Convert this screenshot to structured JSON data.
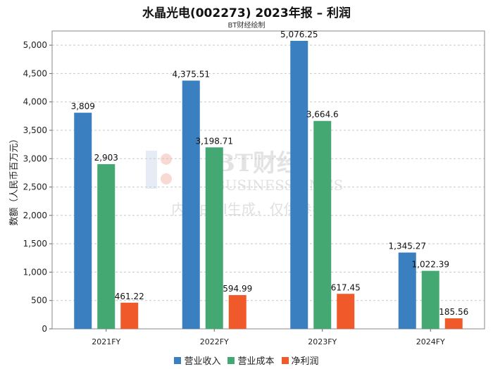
{
  "title": "水晶光电(002273) 2023年报 – 利润",
  "subtitle": "BT财经绘制",
  "watermark": {
    "brand_cn": "BT财经",
    "brand_en": "BUSINESSTIMES",
    "notice": "内容由AI生成，仅供参考"
  },
  "colors": {
    "营业收入": "#3a7fc0",
    "营业成本": "#43a872",
    "净利润": "#f05a2a"
  },
  "chart_data": {
    "type": "bar",
    "title": "水晶光电(002273) 2023年报 – 利润",
    "subtitle": "BT财经绘制",
    "xlabel": "",
    "ylabel": "数额（人民币百万元）",
    "ylim": [
      0,
      5250
    ],
    "yticks": [
      "0",
      "500",
      "1,000",
      "1,500",
      "2,000",
      "2,500",
      "3,000",
      "3,500",
      "4,000",
      "4,500",
      "5,000"
    ],
    "ytick_values": [
      0,
      500,
      1000,
      1500,
      2000,
      2500,
      3000,
      3500,
      4000,
      4500,
      5000
    ],
    "categories": [
      "2021FY",
      "2022FY",
      "2023FY",
      "2024FY"
    ],
    "series": [
      {
        "name": "营业收入",
        "values": [
          3809,
          4375.51,
          5076.25,
          1345.27
        ],
        "labels": [
          "3,809",
          "4,375.51",
          "5,076.25",
          "1,345.27"
        ]
      },
      {
        "name": "营业成本",
        "values": [
          2903,
          3198.71,
          3664.6,
          1022.39
        ],
        "labels": [
          "2,903",
          "3,198.71",
          "3,664.6",
          "1,022.39"
        ]
      },
      {
        "name": "净利润",
        "values": [
          461.22,
          594.99,
          617.45,
          185.56
        ],
        "labels": [
          "461.22",
          "594.99",
          "617.45",
          "185.56"
        ]
      }
    ],
    "grid": true,
    "legend": "bottom"
  }
}
